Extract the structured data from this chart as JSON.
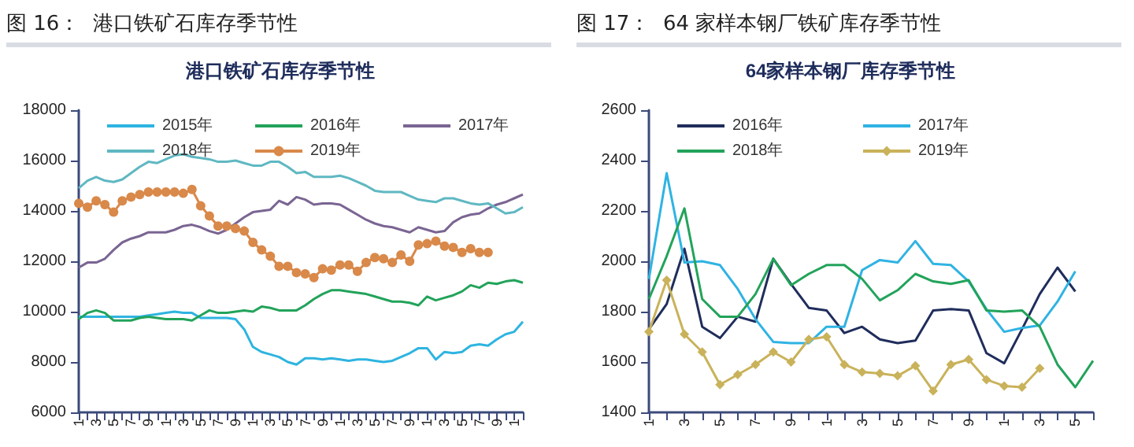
{
  "chart_data": [
    {
      "type": "line",
      "title": "图 16：  港口铁矿石库存季节性",
      "subtitle": "港口铁矿石库存季节性",
      "categories": [
        "1",
        null,
        "3",
        null,
        "5",
        null,
        "7",
        null,
        "9",
        null,
        "1",
        null,
        "3",
        null,
        "5",
        null,
        "7",
        null,
        "9",
        null,
        "1",
        null,
        "3",
        null,
        "5",
        null,
        "7",
        null,
        "9",
        null,
        "1",
        null,
        "3",
        null,
        "5",
        null,
        "7",
        null,
        "9",
        null,
        "1",
        null,
        "3",
        null,
        "5",
        null,
        "7",
        null,
        "9",
        null,
        "1",
        null
      ],
      "ylim": [
        6000,
        18000
      ],
      "yticks": [
        6000,
        8000,
        10000,
        12000,
        14000,
        16000,
        18000
      ],
      "grid": false,
      "legend": "top",
      "marker": "none",
      "series": [
        {
          "name": "2015年",
          "color": "#2eb4e0",
          "values": [
            9800,
            9800,
            9800,
            9800,
            9800,
            9800,
            9800,
            9800,
            9850,
            9900,
            9950,
            10000,
            9950,
            9950,
            9750,
            9750,
            9750,
            9750,
            9700,
            9300,
            8600,
            8400,
            8300,
            8200,
            8000,
            7900,
            8150,
            8150,
            8100,
            8150,
            8100,
            8050,
            8100,
            8100,
            8050,
            8000,
            8050,
            8200,
            8350,
            8550,
            8550,
            8100,
            8400,
            8350,
            8400,
            8650,
            8700,
            8650,
            8900,
            9100,
            9200,
            9600
          ]
        },
        {
          "name": "2016年",
          "color": "#22a35a",
          "values": [
            9700,
            9950,
            10050,
            9950,
            9650,
            9650,
            9650,
            9750,
            9800,
            9750,
            9700,
            9700,
            9700,
            9650,
            9850,
            10050,
            9950,
            9950,
            10000,
            10050,
            10000,
            10200,
            10150,
            10050,
            10050,
            10050,
            10250,
            10500,
            10700,
            10850,
            10850,
            10800,
            10750,
            10700,
            10600,
            10500,
            10400,
            10400,
            10350,
            10250,
            10600,
            10450,
            10550,
            10650,
            10800,
            11050,
            10950,
            11150,
            11100,
            11200,
            11250,
            11150
          ]
        },
        {
          "name": "2017年",
          "color": "#7a6592",
          "values": [
            11750,
            11950,
            11950,
            12100,
            12450,
            12750,
            12900,
            13000,
            13150,
            13150,
            13150,
            13250,
            13400,
            13450,
            13350,
            13200,
            13100,
            13250,
            13500,
            13750,
            13950,
            14000,
            14050,
            14400,
            14250,
            14550,
            14450,
            14250,
            14300,
            14300,
            14250,
            14050,
            13850,
            13650,
            13500,
            13400,
            13350,
            13250,
            13150,
            13350,
            13250,
            13150,
            13200,
            13550,
            13750,
            13850,
            13900,
            14100,
            14250,
            14350,
            14500,
            14650
          ]
        },
        {
          "name": "2018年",
          "color": "#5fb8c2",
          "values": [
            14900,
            15200,
            15350,
            15200,
            15150,
            15250,
            15500,
            15750,
            15950,
            15900,
            16050,
            16200,
            16250,
            16150,
            16100,
            16050,
            15950,
            15950,
            16000,
            15900,
            15800,
            15800,
            15950,
            15950,
            15750,
            15500,
            15550,
            15350,
            15350,
            15350,
            15400,
            15300,
            15150,
            15000,
            14800,
            14750,
            14750,
            14750,
            14600,
            14450,
            14400,
            14350,
            14500,
            14500,
            14400,
            14300,
            14250,
            14300,
            14100,
            13900,
            13950,
            14150
          ]
        },
        {
          "name": "2019年",
          "color": "#d9894a",
          "marker": "circle",
          "values": [
            14300,
            14150,
            14400,
            14250,
            13950,
            14400,
            14550,
            14650,
            14750,
            14750,
            14750,
            14750,
            14700,
            14850,
            14200,
            13800,
            13400,
            13400,
            13300,
            13200,
            12750,
            12450,
            12200,
            11800,
            11800,
            11550,
            11500,
            11350,
            11700,
            11650,
            11850,
            11850,
            11600,
            11950,
            12150,
            12100,
            11950,
            12250,
            12000,
            12650,
            12700,
            12800,
            12600,
            12550,
            12350,
            12500,
            12350,
            12350,
            null,
            null,
            null,
            null
          ]
        }
      ]
    },
    {
      "type": "line",
      "title": "图 17：  64 家样本钢厂铁矿库存季节性",
      "subtitle": "64家样本钢厂库存季节性",
      "categories": [
        "1",
        null,
        "3",
        null,
        "5",
        null,
        "7",
        null,
        "9",
        null,
        "1",
        null,
        "3",
        null,
        "5",
        null,
        "7",
        null,
        "9",
        null,
        "1",
        null,
        "3",
        null,
        "5",
        null
      ],
      "ylim": [
        1400,
        2600
      ],
      "yticks": [
        1400,
        1600,
        1800,
        2000,
        2200,
        2400,
        2600
      ],
      "grid": false,
      "legend": "top",
      "marker": "none",
      "series": [
        {
          "name": "2016年",
          "color": "#1f2d5c",
          "values": [
            1730,
            1830,
            2050,
            1740,
            1695,
            1780,
            1760,
            2010,
            1910,
            1815,
            1805,
            1715,
            1740,
            1690,
            1675,
            1685,
            1805,
            1810,
            1805,
            1635,
            1595,
            1730,
            1870,
            1975,
            1880,
            null
          ]
        },
        {
          "name": "2017年",
          "color": "#2fb3e3",
          "values": [
            1930,
            2350,
            1995,
            2000,
            1985,
            1890,
            1770,
            1680,
            1675,
            1675,
            1740,
            1740,
            1965,
            2005,
            1995,
            2080,
            1990,
            1985,
            1920,
            1810,
            1720,
            1735,
            1745,
            1840,
            1960,
            null
          ]
        },
        {
          "name": "2018年",
          "color": "#22a35a",
          "values": [
            1850,
            2020,
            2210,
            1850,
            1780,
            1780,
            1870,
            2010,
            1905,
            1950,
            1985,
            1985,
            1930,
            1845,
            1885,
            1950,
            1920,
            1910,
            1925,
            1805,
            1800,
            1805,
            1740,
            1590,
            1500,
            1605
          ]
        },
        {
          "name": "2019年",
          "color": "#c9b25a",
          "marker": "diamond",
          "values": [
            1720,
            1925,
            1710,
            1640,
            1510,
            1550,
            1590,
            1640,
            1600,
            1690,
            1700,
            1590,
            1560,
            1555,
            1545,
            1585,
            1485,
            1590,
            1610,
            1530,
            1505,
            1500,
            1575,
            null,
            null,
            null
          ]
        }
      ]
    }
  ]
}
